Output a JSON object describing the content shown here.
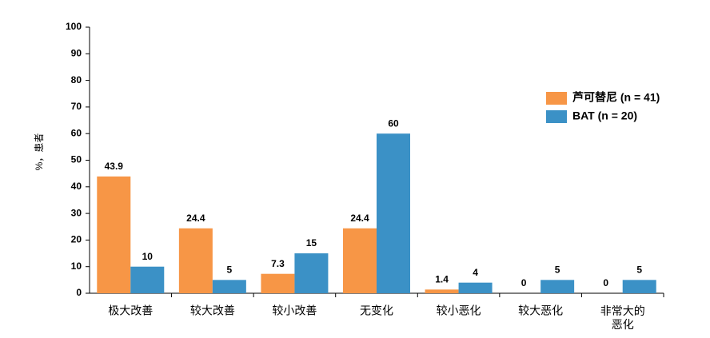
{
  "chart_data": {
    "type": "bar",
    "y_label": "%，患者",
    "categories": [
      "极大改善",
      "较大改善",
      "较小改善",
      "无变化",
      "较小恶化",
      "较大恶化",
      "非常大的\n恶化"
    ],
    "series": [
      {
        "name": "芦可替尼 (n = 41)",
        "color": "#f79646",
        "values": [
          43.9,
          24.4,
          7.3,
          24.4,
          1.4,
          0,
          0
        ]
      },
      {
        "name": "BAT (n = 20)",
        "color": "#3b91c6",
        "values": [
          10,
          5,
          15,
          60,
          4,
          5,
          5
        ]
      }
    ],
    "ylim": [
      0,
      100
    ],
    "yticks": [
      0,
      10,
      20,
      30,
      40,
      50,
      60,
      70,
      80,
      90,
      100
    ],
    "legend": "right"
  }
}
